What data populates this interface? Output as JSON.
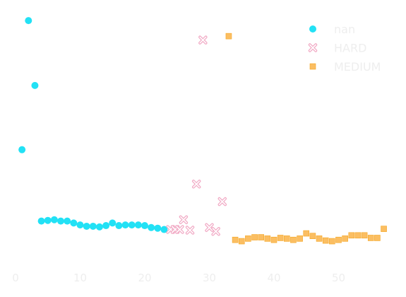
{
  "chart_data": {
    "type": "scatter",
    "title": "",
    "xlabel": "",
    "ylabel": "",
    "xlim": [
      -0.3,
      57.3
    ],
    "ylim": [
      0,
      40
    ],
    "x_ticks": [
      "0",
      "10",
      "20",
      "30",
      "40",
      "50"
    ],
    "grid": false,
    "legend": {
      "placement": "top-right"
    },
    "series": [
      {
        "name": "nan",
        "marker": "circle",
        "color": "#22e1f5",
        "x": [
          1,
          2,
          3,
          4,
          5,
          6,
          7,
          8,
          9,
          10,
          11,
          12,
          13,
          14,
          15,
          16,
          17,
          18,
          19,
          20,
          21,
          22,
          23
        ],
        "y": [
          17.8,
          37.7,
          27.7,
          6.8,
          6.9,
          7.0,
          6.8,
          6.8,
          6.5,
          6.2,
          6.0,
          6.0,
          5.9,
          6.1,
          6.5,
          6.1,
          6.2,
          6.2,
          6.2,
          6.1,
          5.8,
          5.7,
          5.5
        ]
      },
      {
        "name": "HARD",
        "marker": "x",
        "color": "#f1a9c4",
        "x": [
          24,
          24.7,
          25.4,
          26,
          27,
          28,
          29,
          30,
          31,
          32
        ],
        "y": [
          5.5,
          5.5,
          5.5,
          7.0,
          5.4,
          12.5,
          34.7,
          5.8,
          5.2,
          9.8
        ]
      },
      {
        "name": "MEDIUM",
        "marker": "square",
        "color": "#fbbe62",
        "x": [
          33,
          34,
          35,
          36,
          37,
          38,
          39,
          40,
          41,
          42,
          43,
          44,
          45,
          46,
          47,
          48,
          49,
          50,
          51,
          52,
          53,
          54,
          55,
          56,
          57
        ],
        "y": [
          35.3,
          3.9,
          3.7,
          4.1,
          4.3,
          4.3,
          4.1,
          3.9,
          4.2,
          4.1,
          3.9,
          4.1,
          4.9,
          4.5,
          4.1,
          3.8,
          3.7,
          3.9,
          4.1,
          4.6,
          4.6,
          4.6,
          4.2,
          4.2,
          5.6
        ]
      }
    ]
  }
}
